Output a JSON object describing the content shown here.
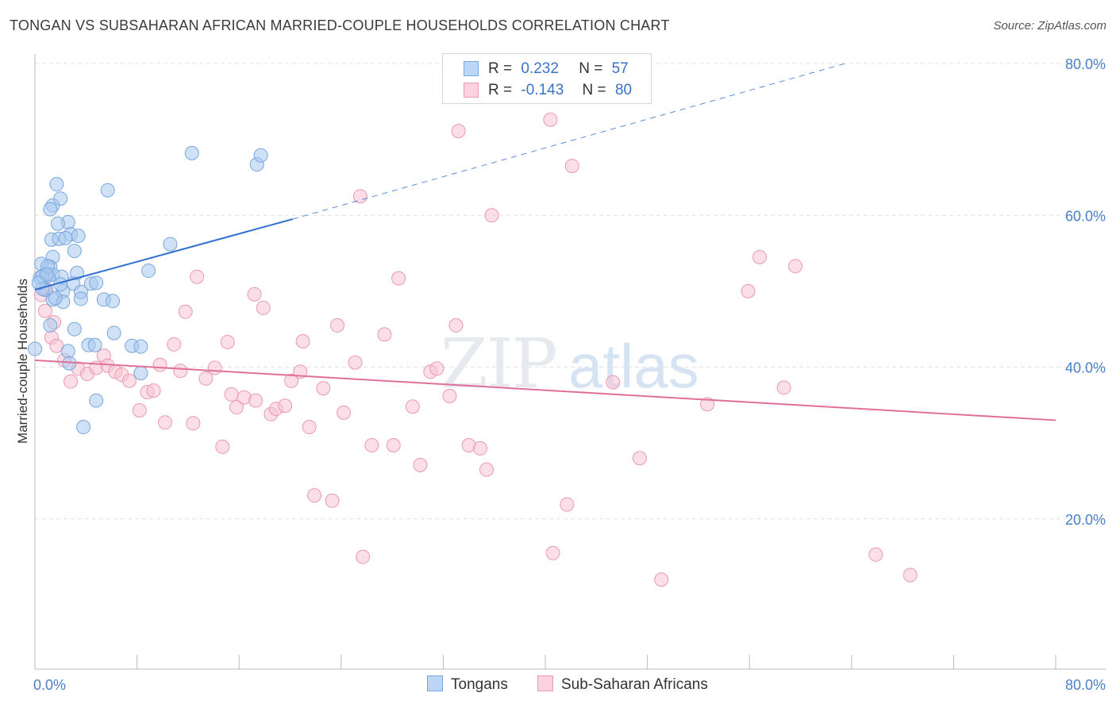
{
  "title": "TONGAN VS SUBSAHARAN AFRICAN MARRIED-COUPLE HOUSEHOLDS CORRELATION CHART",
  "source": "Source: ZipAtlas.com",
  "watermark": "ZIPatlas",
  "colors": {
    "tongans_fill": "#a8c8ef",
    "tongans_stroke": "#7aa6dc",
    "tongans_line": "#2e6fcf",
    "africans_fill": "#f7c3d2",
    "africans_stroke": "#ea9ab3",
    "africans_line": "#e0709a",
    "axis_label": "#4a7fc8"
  },
  "legend_top": {
    "rows": [
      {
        "r_label": "R =",
        "r_value": "0.232",
        "n_label": "N =",
        "n_value": "57"
      },
      {
        "r_label": "R =",
        "r_value": "-0.143",
        "n_label": "N =",
        "n_value": "80"
      }
    ]
  },
  "legend_bottom": {
    "tongans": "Tongans",
    "africans": "Sub-Saharan Africans"
  },
  "chart_data": {
    "type": "scatter",
    "title": "TONGAN VS SUBSAHARAN AFRICAN MARRIED-COUPLE HOUSEHOLDS CORRELATION CHART",
    "xlabel": "",
    "ylabel": "Married-couple Households",
    "xlim": [
      0,
      80
    ],
    "ylim": [
      0,
      82
    ],
    "x_tick_labels": [
      "0.0%",
      "80.0%"
    ],
    "y_ticks": [
      20,
      40,
      60,
      80
    ],
    "y_tick_labels": [
      "20.0%",
      "40.0%",
      "60.0%",
      "80.0%"
    ],
    "grid": true,
    "legend_placement": "top-center and bottom",
    "series": [
      {
        "name": "Tongans",
        "r": 0.232,
        "n": 57,
        "trend": {
          "x0": 0,
          "y0": 50.2,
          "x1": 20.2,
          "y1": 59.5,
          "dashed_to_x": 63.5,
          "dashed_to_y": 80.0
        },
        "points": [
          [
            0.4,
            51.8
          ],
          [
            0.8,
            50.2
          ],
          [
            0.5,
            53.6
          ],
          [
            1.0,
            52.0
          ],
          [
            1.4,
            61.3
          ],
          [
            1.7,
            64.1
          ],
          [
            2.0,
            62.2
          ],
          [
            1.2,
            60.8
          ],
          [
            2.6,
            59.1
          ],
          [
            1.8,
            58.9
          ],
          [
            2.8,
            57.5
          ],
          [
            1.3,
            56.8
          ],
          [
            1.9,
            56.9
          ],
          [
            2.4,
            57.0
          ],
          [
            3.4,
            57.3
          ],
          [
            1.4,
            54.5
          ],
          [
            3.1,
            55.3
          ],
          [
            1.2,
            53.2
          ],
          [
            1.4,
            52.2
          ],
          [
            2.1,
            51.9
          ],
          [
            3.3,
            52.4
          ],
          [
            3.0,
            51.0
          ],
          [
            4.4,
            51.0
          ],
          [
            4.8,
            51.1
          ],
          [
            2.2,
            50.0
          ],
          [
            0.6,
            50.3
          ],
          [
            3.6,
            49.9
          ],
          [
            1.4,
            48.9
          ],
          [
            2.2,
            48.6
          ],
          [
            3.6,
            49.0
          ],
          [
            5.4,
            48.9
          ],
          [
            6.1,
            48.7
          ],
          [
            8.9,
            52.7
          ],
          [
            10.6,
            56.2
          ],
          [
            5.7,
            63.3
          ],
          [
            12.3,
            68.2
          ],
          [
            17.4,
            66.7
          ],
          [
            17.7,
            67.9
          ],
          [
            1.2,
            45.5
          ],
          [
            3.1,
            45.0
          ],
          [
            6.2,
            44.5
          ],
          [
            2.6,
            42.1
          ],
          [
            4.2,
            42.9
          ],
          [
            4.7,
            42.9
          ],
          [
            7.6,
            42.8
          ],
          [
            8.3,
            42.7
          ],
          [
            0.0,
            42.4
          ],
          [
            2.7,
            40.5
          ],
          [
            8.3,
            39.2
          ],
          [
            4.8,
            35.6
          ],
          [
            3.8,
            32.1
          ],
          [
            0.6,
            52.0
          ],
          [
            1.0,
            53.3
          ],
          [
            2.0,
            50.9
          ],
          [
            0.9,
            52.2
          ],
          [
            0.3,
            51.1
          ],
          [
            1.6,
            49.1
          ]
        ]
      },
      {
        "name": "Sub-Saharan Africans",
        "r": -0.143,
        "n": 80,
        "trend": {
          "x0": 0,
          "y0": 40.9,
          "x1": 80,
          "y1": 33.0
        },
        "points": [
          [
            0.9,
            50.2
          ],
          [
            0.8,
            47.4
          ],
          [
            1.3,
            43.9
          ],
          [
            1.7,
            42.8
          ],
          [
            2.3,
            40.9
          ],
          [
            2.8,
            38.1
          ],
          [
            3.4,
            39.8
          ],
          [
            4.1,
            39.1
          ],
          [
            4.8,
            39.9
          ],
          [
            5.4,
            41.5
          ],
          [
            5.7,
            40.2
          ],
          [
            6.3,
            39.4
          ],
          [
            6.8,
            39.0
          ],
          [
            7.4,
            38.2
          ],
          [
            8.2,
            34.3
          ],
          [
            8.8,
            36.7
          ],
          [
            9.3,
            36.9
          ],
          [
            9.8,
            40.3
          ],
          [
            10.2,
            32.7
          ],
          [
            10.9,
            43.0
          ],
          [
            11.4,
            39.5
          ],
          [
            11.8,
            47.3
          ],
          [
            12.4,
            32.6
          ],
          [
            12.7,
            51.9
          ],
          [
            13.4,
            38.5
          ],
          [
            14.1,
            39.9
          ],
          [
            14.7,
            29.5
          ],
          [
            15.1,
            43.3
          ],
          [
            15.4,
            36.4
          ],
          [
            15.8,
            34.7
          ],
          [
            16.4,
            36.0
          ],
          [
            17.3,
            35.6
          ],
          [
            17.2,
            49.6
          ],
          [
            17.9,
            47.8
          ],
          [
            18.5,
            33.8
          ],
          [
            18.9,
            34.5
          ],
          [
            19.6,
            34.9
          ],
          [
            20.1,
            38.2
          ],
          [
            20.8,
            39.4
          ],
          [
            21.0,
            43.4
          ],
          [
            21.5,
            32.1
          ],
          [
            21.9,
            23.1
          ],
          [
            22.6,
            37.2
          ],
          [
            23.3,
            22.4
          ],
          [
            23.7,
            45.5
          ],
          [
            24.2,
            34.0
          ],
          [
            25.1,
            40.6
          ],
          [
            25.5,
            62.5
          ],
          [
            25.7,
            15.0
          ],
          [
            26.4,
            29.7
          ],
          [
            27.4,
            44.3
          ],
          [
            28.1,
            29.7
          ],
          [
            28.5,
            51.7
          ],
          [
            29.6,
            34.8
          ],
          [
            30.2,
            27.1
          ],
          [
            31.0,
            39.4
          ],
          [
            31.5,
            39.8
          ],
          [
            32.5,
            36.2
          ],
          [
            33.0,
            45.5
          ],
          [
            33.2,
            71.1
          ],
          [
            34.0,
            29.7
          ],
          [
            34.9,
            29.3
          ],
          [
            35.4,
            26.5
          ],
          [
            35.8,
            60.0
          ],
          [
            40.4,
            72.6
          ],
          [
            40.6,
            15.5
          ],
          [
            42.1,
            66.5
          ],
          [
            41.7,
            21.9
          ],
          [
            45.3,
            38.0
          ],
          [
            47.4,
            28.0
          ],
          [
            49.1,
            12.0
          ],
          [
            52.7,
            35.1
          ],
          [
            55.9,
            50.0
          ],
          [
            56.8,
            54.5
          ],
          [
            58.7,
            37.3
          ],
          [
            59.6,
            53.3
          ],
          [
            65.9,
            15.3
          ],
          [
            68.6,
            12.6
          ],
          [
            0.5,
            49.5
          ],
          [
            1.5,
            45.9
          ]
        ]
      }
    ]
  }
}
